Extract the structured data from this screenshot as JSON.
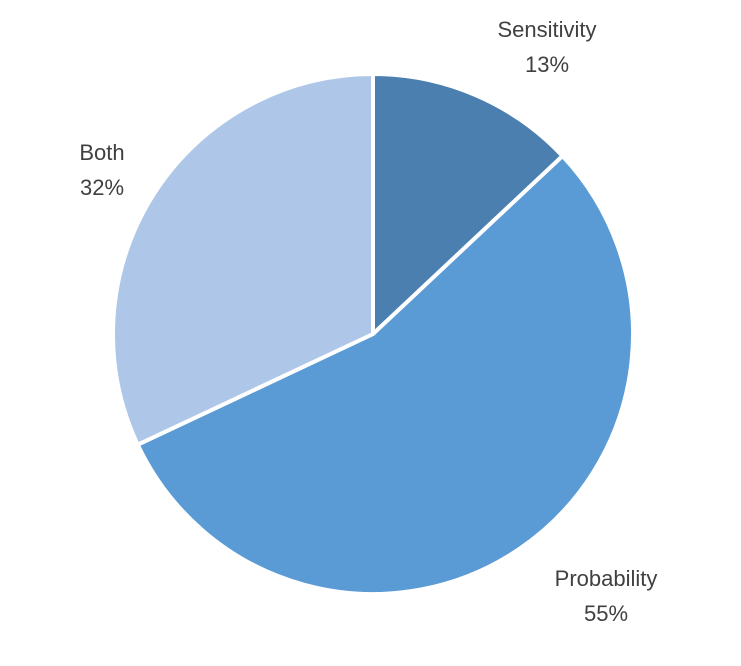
{
  "chart_data": {
    "type": "pie",
    "title": "",
    "slices": [
      {
        "label": "Sensitivity",
        "value": 13,
        "percent_text": "13%",
        "color": "#4a7fb0"
      },
      {
        "label": "Probability",
        "value": 55,
        "percent_text": "55%",
        "color": "#5a9bd5"
      },
      {
        "label": "Both",
        "value": 32,
        "percent_text": "32%",
        "color": "#aec7e8"
      }
    ]
  }
}
